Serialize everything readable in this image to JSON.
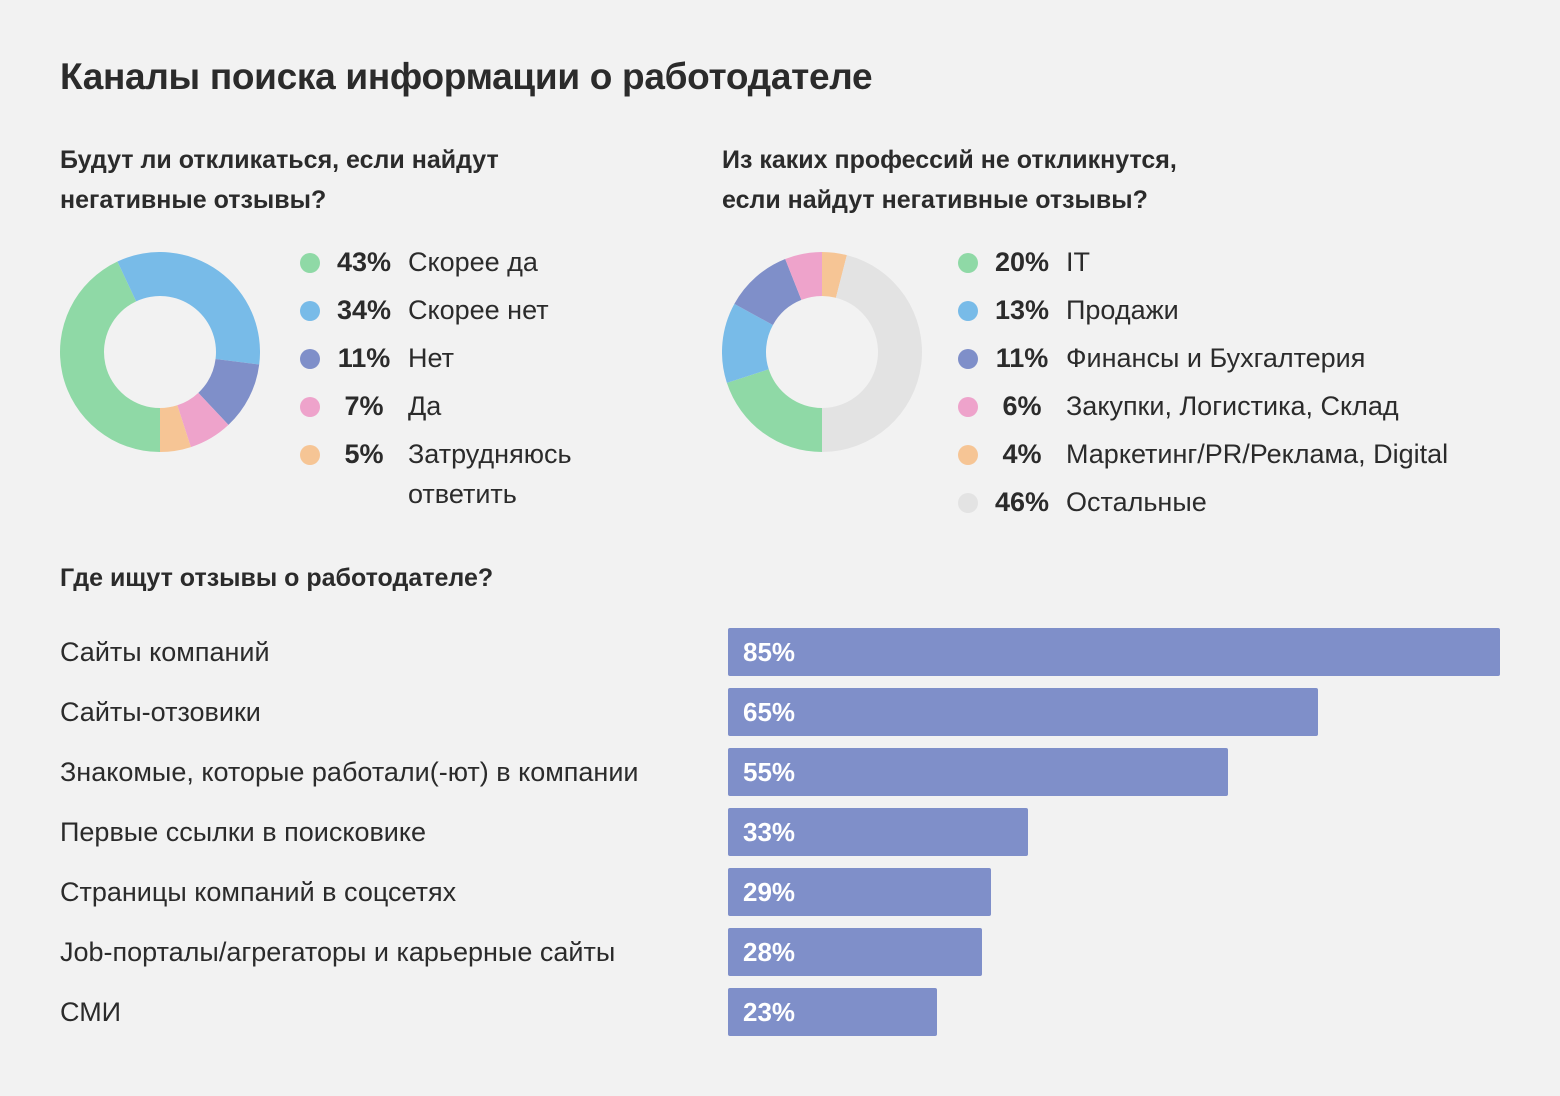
{
  "title": "Каналы поиска информации о работодателе",
  "chart_data": [
    {
      "type": "pie",
      "title": "Будут ли откликаться, если найдут негативные отзывы?",
      "title_lines": [
        "Будут ли откликаться, если найдут",
        "негативные отзывы?"
      ],
      "slices": [
        {
          "label": "Скорее да",
          "value": 43,
          "pct_label": "43%",
          "color": "#8fd9a6"
        },
        {
          "label": "Скорее нет",
          "value": 34,
          "pct_label": "34%",
          "color": "#78bbe8"
        },
        {
          "label": "Нет",
          "value": 11,
          "pct_label": "11%",
          "color": "#7f8fc9"
        },
        {
          "label": "Да",
          "value": 7,
          "pct_label": "7%",
          "color": "#eea3cb"
        },
        {
          "label": "Затрудняюсь ответить",
          "value": 5,
          "pct_label": "5%",
          "color": "#f6c595"
        }
      ]
    },
    {
      "type": "pie",
      "title": "Из каких профессий не откликнутся, если найдут негативные отзывы?",
      "title_lines": [
        "Из каких профессий не откликнутся,",
        "если найдут негативные отзывы?"
      ],
      "slices": [
        {
          "label": "IT",
          "value": 20,
          "pct_label": "20%",
          "color": "#8fd9a6"
        },
        {
          "label": "Продажи",
          "value": 13,
          "pct_label": "13%",
          "color": "#78bbe8"
        },
        {
          "label": "Финансы и Бухгалтерия",
          "value": 11,
          "pct_label": "11%",
          "color": "#7f8fc9"
        },
        {
          "label": "Закупки, Логистика, Склад",
          "value": 6,
          "pct_label": "6%",
          "color": "#eea3cb"
        },
        {
          "label": "Маркетинг/PR/Реклама, Digital",
          "value": 4,
          "pct_label": "4%",
          "color": "#f6c595"
        },
        {
          "label": "Остальные",
          "value": 46,
          "pct_label": "46%",
          "color": "#e3e3e3"
        }
      ]
    },
    {
      "type": "bar",
      "orientation": "horizontal",
      "title": "Где ищут отзывы о работодателе?",
      "categories": [
        "Сайты компаний",
        "Сайты-отзовики",
        "Знакомые, которые работали(-ют) в компании",
        "Первые ссылки в поисковике",
        "Страницы компаний в соцсетях",
        "Job-порталы/агрегаторы и карьерные сайты",
        "СМИ"
      ],
      "values": [
        85,
        65,
        55,
        33,
        29,
        28,
        23
      ],
      "value_labels": [
        "85%",
        "65%",
        "55%",
        "33%",
        "29%",
        "28%",
        "23%"
      ],
      "color": "#7f8fc9",
      "xlim": [
        0,
        85
      ]
    }
  ]
}
